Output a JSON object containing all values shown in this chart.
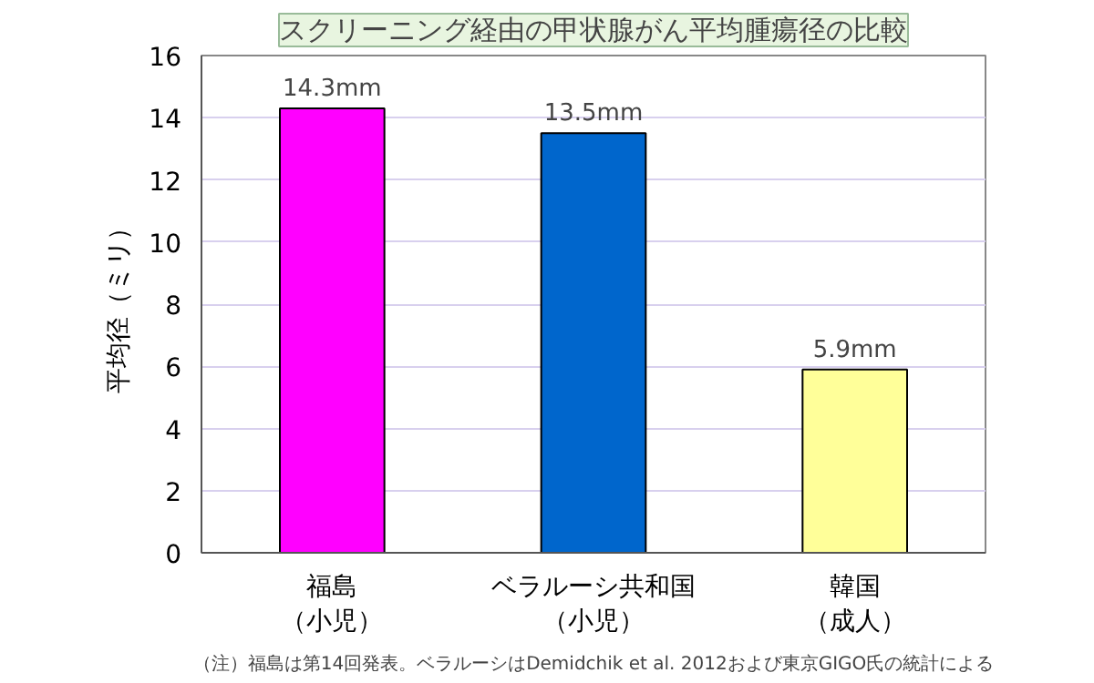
{
  "chart_data": {
    "type": "bar",
    "title": "スクリーニング経由の甲状腺がん平均腫瘍径の比較",
    "ylabel": "平均径（ミリ）",
    "categories": [
      "福島（小児）",
      "ベラルーシ共和国（小児）",
      "韓国（成人）"
    ],
    "values": [
      14.3,
      13.5,
      5.9
    ],
    "colors": [
      "#ff00ff",
      "#0066cc",
      "#ffff99"
    ],
    "value_labels": [
      "14.3mm",
      "13.5mm",
      "5.9mm"
    ],
    "ylim": [
      0,
      16
    ],
    "yticks": [
      0,
      2,
      4,
      6,
      8,
      10,
      12,
      14,
      16
    ],
    "grid": "y",
    "annotations": [
      "（注）福島は第14回発表。ベラルーシはDemidchik et al. 2012および東京GIGO氏の統計による"
    ]
  }
}
